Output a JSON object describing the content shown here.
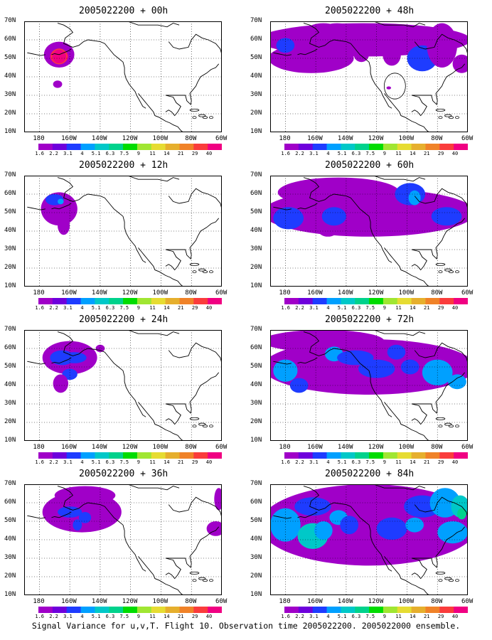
{
  "caption": "Signal Variance for u,v,T. Flight 10. Observation time 2005022200. 2005022000 ensemble.",
  "lat_labels": [
    "70N",
    "60N",
    "50N",
    "40N",
    "30N",
    "20N",
    "10N"
  ],
  "lon_labels": [
    "180",
    "160W",
    "140W",
    "120W",
    "100W",
    "80W",
    "60W"
  ],
  "colorbar": {
    "levels": [
      "1.6",
      "2.2",
      "3.1",
      "4",
      "5.1",
      "6.3",
      "7.5",
      "9",
      "11",
      "14",
      "21",
      "29",
      "40"
    ],
    "colors": [
      "#a000c8",
      "#6e00dc",
      "#1e3cff",
      "#00a0ff",
      "#00c8c8",
      "#00d28c",
      "#00dc00",
      "#a0e632",
      "#e6dc32",
      "#e6af2d",
      "#f08228",
      "#fa3c3c",
      "#f00082"
    ]
  },
  "land_color": "#ffffff",
  "panels": [
    {
      "title": "2005022200 + 00h",
      "forecast_hour": 0
    },
    {
      "title": "2005022200 + 48h",
      "forecast_hour": 48
    },
    {
      "title": "2005022200 + 12h",
      "forecast_hour": 12
    },
    {
      "title": "2005022200 + 60h",
      "forecast_hour": 60
    },
    {
      "title": "2005022200 + 24h",
      "forecast_hour": 24
    },
    {
      "title": "2005022200 + 72h",
      "forecast_hour": 72
    },
    {
      "title": "2005022200 + 36h",
      "forecast_hour": 36
    },
    {
      "title": "2005022200 + 84h",
      "forecast_hour": 84
    }
  ]
}
